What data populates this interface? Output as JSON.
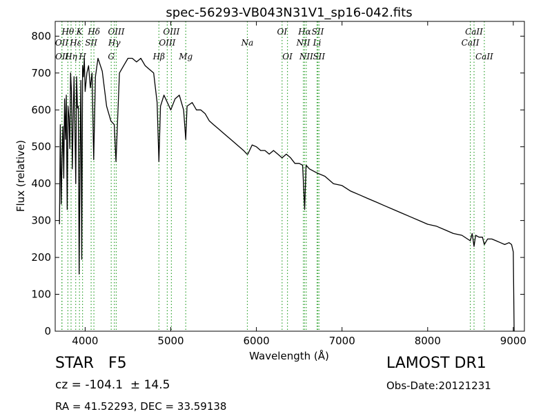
{
  "chart_data": {
    "type": "line",
    "title": "spec-56293-VB043N31V1_sp16-042.fits",
    "xlabel": "Wavelength (Å)",
    "ylabel": "Flux (relative)",
    "xlim": [
      3650,
      9130
    ],
    "ylim": [
      0,
      840
    ],
    "xticks": [
      4000,
      5000,
      6000,
      7000,
      8000,
      9000
    ],
    "yticks": [
      0,
      100,
      200,
      300,
      400,
      500,
      600,
      700,
      800
    ],
    "grid": false,
    "line_color": "#000000",
    "marker_color": "#2ca02c",
    "series": [
      {
        "x": [
          3700,
          3710,
          3720,
          3730,
          3740,
          3750,
          3760,
          3770,
          3780,
          3790,
          3800,
          3810,
          3820,
          3830,
          3840,
          3850,
          3860,
          3870,
          3880,
          3890,
          3900,
          3910,
          3920,
          3930,
          3940,
          3950,
          3960,
          3970,
          3980,
          3990,
          4000,
          4020,
          4040,
          4060,
          4080,
          4100,
          4120,
          4150,
          4200,
          4250,
          4300,
          4340,
          4360,
          4400,
          4450,
          4500,
          4550,
          4600,
          4650,
          4700,
          4750,
          4800,
          4840,
          4861,
          4880,
          4920,
          4960,
          5000,
          5050,
          5100,
          5150,
          5175,
          5190,
          5250,
          5300,
          5350,
          5400,
          5450,
          5500,
          5550,
          5600,
          5650,
          5700,
          5750,
          5800,
          5850,
          5890,
          5900,
          5950,
          6000,
          6050,
          6100,
          6150,
          6200,
          6250,
          6300,
          6350,
          6400,
          6450,
          6500,
          6540,
          6563,
          6580,
          6620,
          6700,
          6800,
          6900,
          7000,
          7100,
          7200,
          7300,
          7400,
          7500,
          7600,
          7700,
          7800,
          7900,
          8000,
          8100,
          8200,
          8300,
          8400,
          8498,
          8520,
          8542,
          8560,
          8600,
          8640,
          8662,
          8700,
          8750,
          8800,
          8850,
          8900,
          8950,
          8980,
          9000,
          9010
        ],
        "values": [
          290,
          560,
          345,
          470,
          555,
          415,
          630,
          520,
          640,
          330,
          610,
          580,
          495,
          700,
          650,
          440,
          580,
          690,
          560,
          400,
          690,
          605,
          610,
          155,
          470,
          680,
          195,
          720,
          690,
          740,
          650,
          700,
          720,
          660,
          700,
          465,
          690,
          740,
          705,
          610,
          570,
          560,
          460,
          700,
          720,
          740,
          740,
          730,
          740,
          720,
          710,
          700,
          620,
          460,
          610,
          640,
          620,
          600,
          630,
          640,
          600,
          520,
          610,
          620,
          600,
          600,
          590,
          570,
          560,
          550,
          540,
          530,
          520,
          510,
          500,
          490,
          480,
          480,
          505,
          500,
          490,
          490,
          480,
          490,
          480,
          470,
          480,
          470,
          455,
          455,
          450,
          330,
          450,
          440,
          430,
          420,
          400,
          395,
          380,
          370,
          360,
          350,
          340,
          330,
          320,
          310,
          300,
          290,
          285,
          275,
          265,
          260,
          245,
          265,
          230,
          260,
          255,
          255,
          235,
          250,
          250,
          245,
          240,
          235,
          240,
          235,
          215,
          0
        ]
      }
    ],
    "markers": [
      {
        "label": "OII",
        "x": 3727,
        "row": 2
      },
      {
        "label": "OII",
        "x": 3729,
        "row": 3
      },
      {
        "label": "Hθ",
        "x": 3798,
        "row": 1
      },
      {
        "label": "Hη",
        "x": 3835,
        "row": 3
      },
      {
        "label": "Hε",
        "x": 3889,
        "row": 2
      },
      {
        "label": "K",
        "x": 3934,
        "row": 1
      },
      {
        "label": "SII",
        "x": 4070,
        "row": 2
      },
      {
        "label": "H",
        "x": 3969,
        "row": 3
      },
      {
        "label": "Hδ",
        "x": 4102,
        "row": 1
      },
      {
        "label": "OIII",
        "x": 4363,
        "row": 1
      },
      {
        "label": "Hγ",
        "x": 4341,
        "row": 2
      },
      {
        "label": "G",
        "x": 4304,
        "row": 3
      },
      {
        "label": "OIII",
        "x": 5007,
        "row": 1
      },
      {
        "label": "OIII",
        "x": 4959,
        "row": 2
      },
      {
        "label": "Hβ",
        "x": 4861,
        "row": 3
      },
      {
        "label": "Mg",
        "x": 5175,
        "row": 3
      },
      {
        "label": "Na",
        "x": 5894,
        "row": 2
      },
      {
        "label": "OI",
        "x": 6300,
        "row": 1
      },
      {
        "label": "OI",
        "x": 6363,
        "row": 3
      },
      {
        "label": "Hα",
        "x": 6563,
        "row": 1
      },
      {
        "label": "NII",
        "x": 6548,
        "row": 2
      },
      {
        "label": "NII",
        "x": 6583,
        "row": 3
      },
      {
        "label": "SII",
        "x": 6716,
        "row": 1
      },
      {
        "label": "Li",
        "x": 6708,
        "row": 2
      },
      {
        "label": "SII",
        "x": 6731,
        "row": 3
      },
      {
        "label": "CaII",
        "x": 8542,
        "row": 1
      },
      {
        "label": "CaII",
        "x": 8498,
        "row": 2
      },
      {
        "label": "CaII",
        "x": 8662,
        "row": 3
      }
    ]
  },
  "info": {
    "object_type": "STAR",
    "subclass": "F5",
    "redshift": "cz = -104.1  ± 14.5",
    "coords": "RA = 41.52293, DEC = 33.59138",
    "survey": "LAMOST DR1",
    "obs_date": "Obs-Date:20121231"
  }
}
